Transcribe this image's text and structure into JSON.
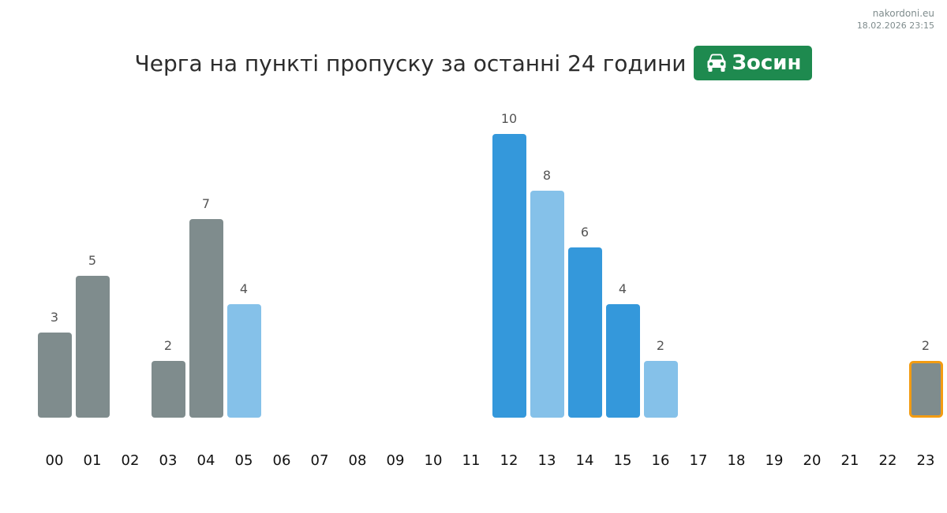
{
  "meta": {
    "site": "nakordoni.eu",
    "timestamp": "18.02.2026 23:15"
  },
  "header": {
    "title": "Черга на пункті пропуску за останні 24 години",
    "badge_label": "Зосин",
    "badge_icon": "car-icon",
    "badge_color": "#1e8a4f"
  },
  "colors": {
    "gray": "#7f8c8d",
    "light_blue": "#85c1e9",
    "blue": "#3498db",
    "highlight_border": "#f39c12",
    "value_label": "#555555",
    "axis_label": "#111111"
  },
  "chart_data": {
    "type": "bar",
    "title": "",
    "xlabel": "",
    "ylabel": "",
    "categories": [
      "00",
      "01",
      "02",
      "03",
      "04",
      "05",
      "06",
      "07",
      "08",
      "09",
      "10",
      "11",
      "12",
      "13",
      "14",
      "15",
      "16",
      "17",
      "18",
      "19",
      "20",
      "21",
      "22",
      "23"
    ],
    "values": [
      3,
      5,
      0,
      2,
      7,
      4,
      0,
      0,
      0,
      0,
      0,
      0,
      10,
      8,
      6,
      4,
      2,
      0,
      0,
      0,
      0,
      0,
      0,
      2
    ],
    "bar_colors": [
      "gray",
      "gray",
      "gray",
      "gray",
      "gray",
      "light_blue",
      "gray",
      "gray",
      "gray",
      "gray",
      "gray",
      "gray",
      "blue",
      "light_blue",
      "blue",
      "blue",
      "light_blue",
      "gray",
      "gray",
      "gray",
      "gray",
      "gray",
      "gray",
      "gray"
    ],
    "highlighted_category": "23",
    "ylim": [
      0,
      10
    ],
    "grid": false,
    "legend": "none"
  }
}
